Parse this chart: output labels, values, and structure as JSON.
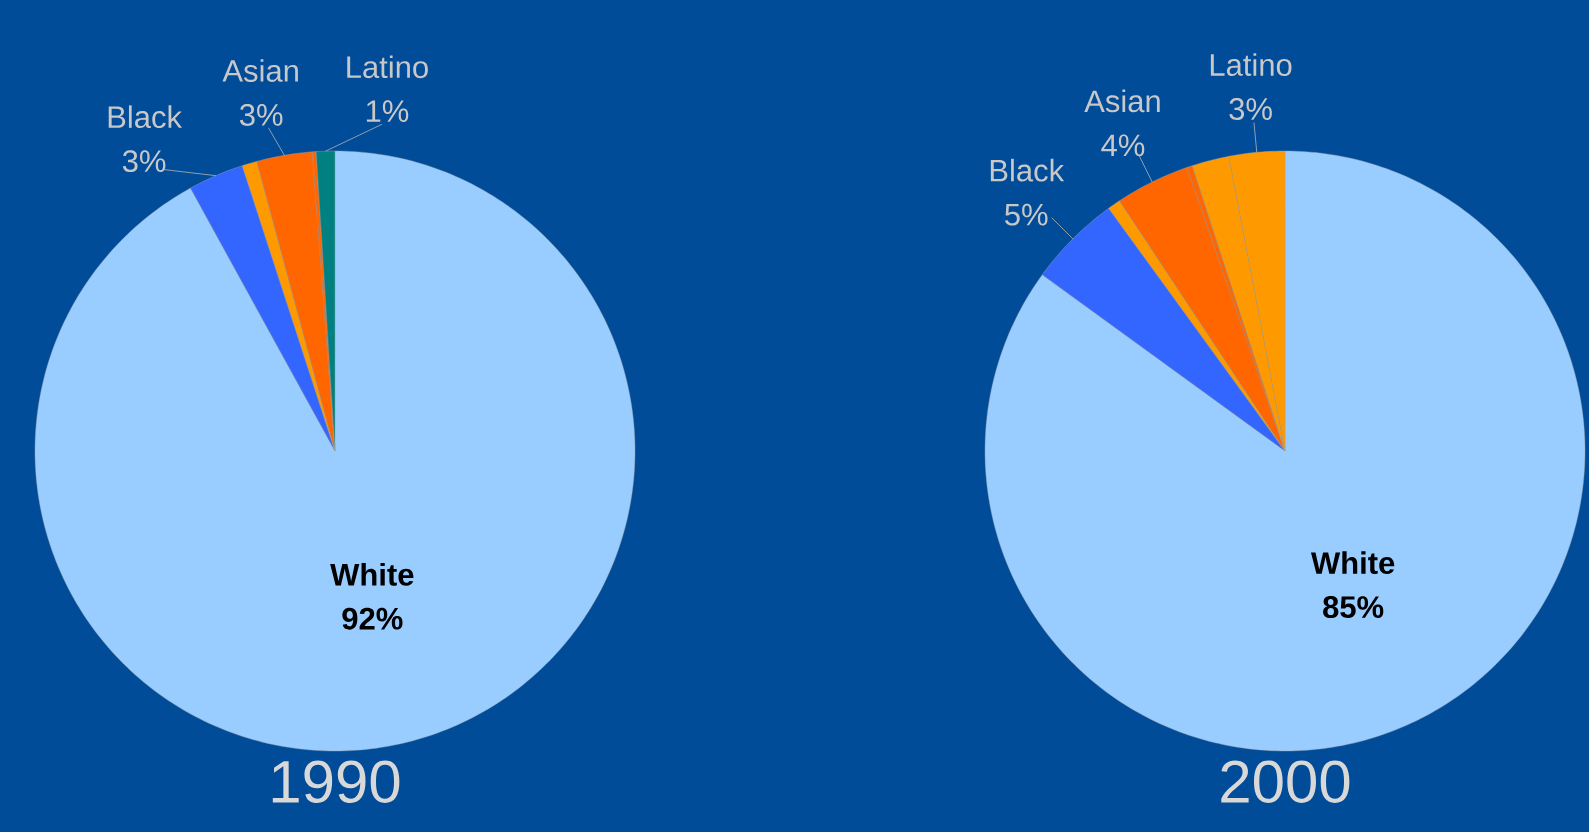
{
  "chart_data": [
    {
      "type": "pie",
      "title": "1990",
      "categories": [
        "White",
        "Black",
        null,
        "Asian",
        null,
        "Latino"
      ],
      "values": [
        92,
        3,
        0.8,
        3,
        0.2,
        1
      ],
      "colors": [
        "#99ccff",
        "#3366ff",
        "#ff9900",
        "#ff6600",
        "#ff6600",
        "#008080"
      ],
      "value_labels": [
        "92%",
        "3%",
        null,
        "3%",
        null,
        "1%"
      ]
    },
    {
      "type": "pie",
      "title": "2000",
      "categories": [
        "White",
        "Black",
        null,
        "Asian",
        null,
        null,
        "Latino"
      ],
      "values": [
        85,
        5,
        0.7,
        4,
        0.3,
        2,
        3
      ],
      "colors": [
        "#99ccff",
        "#3366ff",
        "#ff9900",
        "#ff6600",
        "#ff6600",
        "#ff9900",
        "#ff9900"
      ],
      "value_labels": [
        "85%",
        "5%",
        null,
        "4%",
        null,
        null,
        "3%"
      ]
    }
  ]
}
